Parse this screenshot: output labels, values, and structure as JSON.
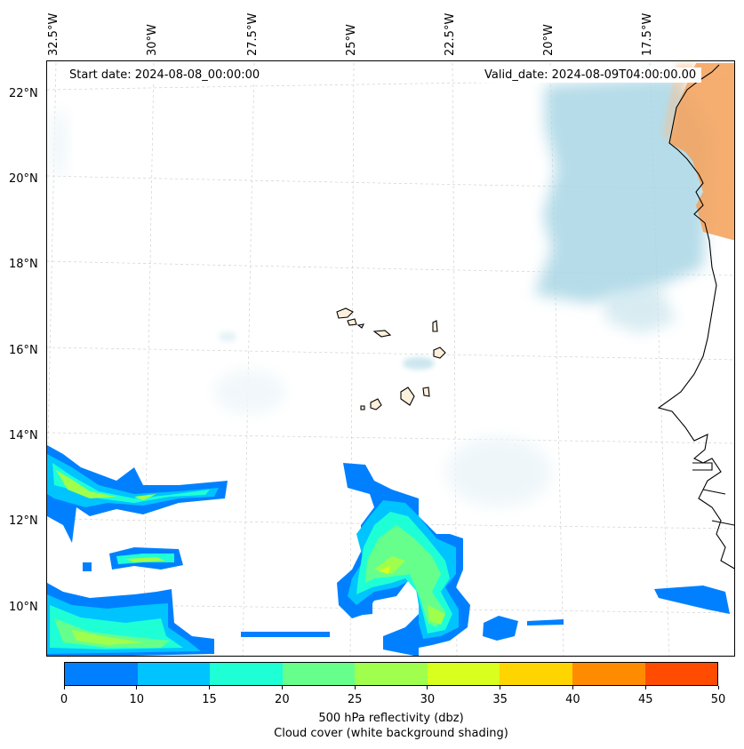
{
  "map": {
    "lon_labels": [
      "32.5°W",
      "30°W",
      "27.5°W",
      "25°W",
      "22.5°W",
      "20°W",
      "17.5°W"
    ],
    "lat_labels": [
      "22°N",
      "20°N",
      "18°N",
      "16°N",
      "14°N",
      "12°N",
      "10°N"
    ],
    "start_date": "Start date: 2024-08-08_00:00:00",
    "valid_date": "Valid_date: 2024-08-09T04:00:00.00"
  },
  "colorbar": {
    "colors": [
      "#0080ff",
      "#00c4ff",
      "#1effd6",
      "#66ff8c",
      "#a0ff4c",
      "#d8ff1e",
      "#ffd500",
      "#ff8c00",
      "#ff4c00"
    ],
    "tick_labels": [
      "0",
      "10",
      "15",
      "20",
      "25",
      "30",
      "35",
      "40",
      "45",
      "50"
    ],
    "title_line1": "500 hPa reflectivity (dbz)",
    "title_line2": "Cloud cover (white background shading)"
  },
  "colors": {
    "cloud_blue": "#a9d6e5",
    "land_orange": "#f4a460",
    "coast": "#000000",
    "grid": "#cccccc"
  }
}
